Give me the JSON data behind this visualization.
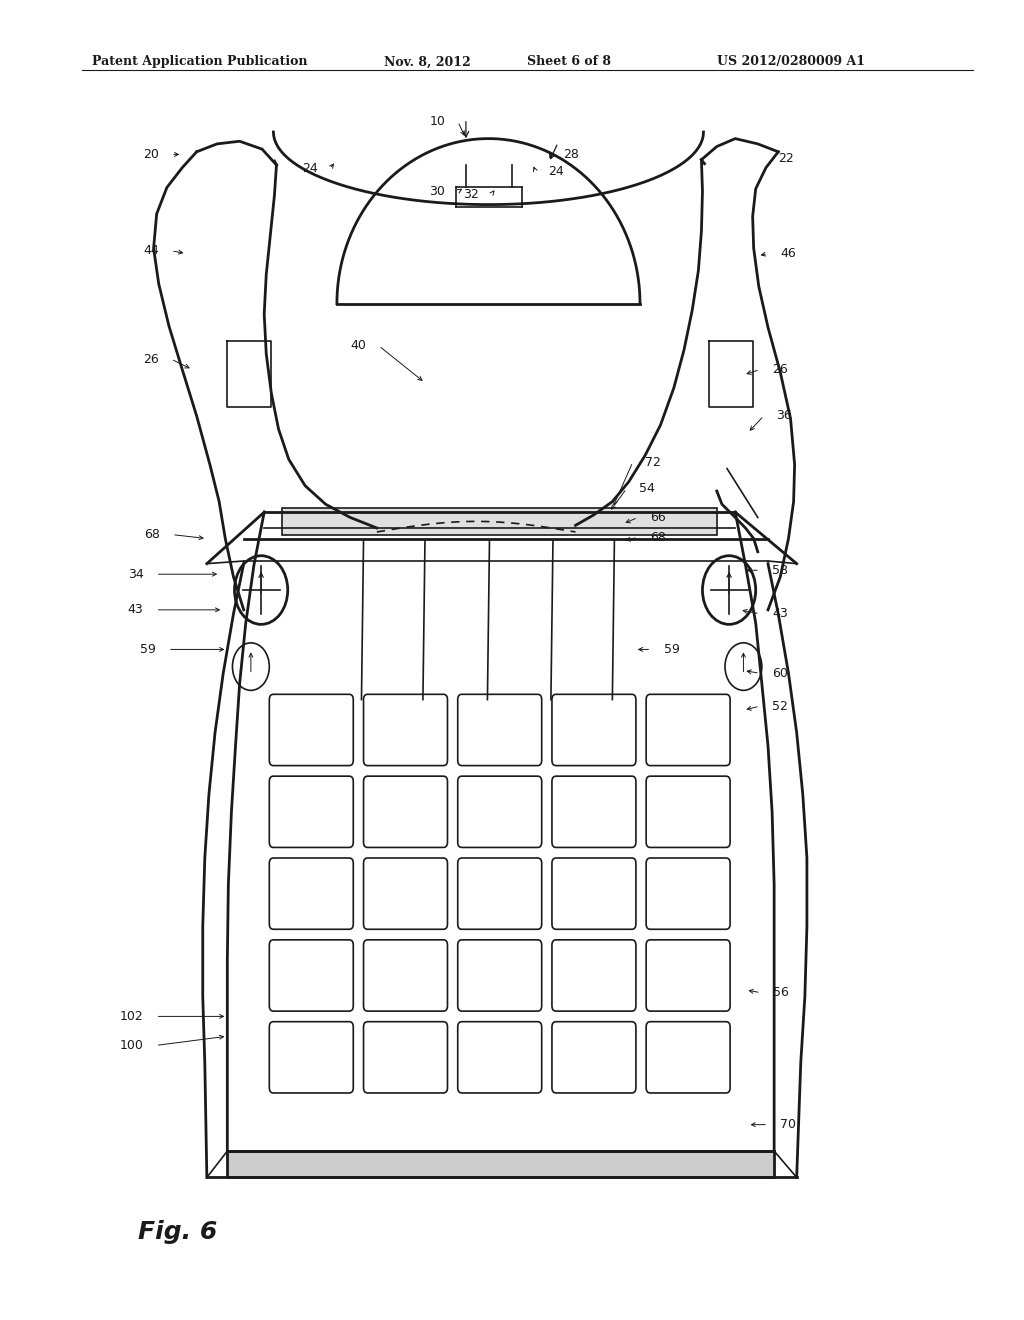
{
  "bg_color": "#ffffff",
  "line_color": "#1a1a1a",
  "header_text": "Patent Application Publication",
  "header_date": "Nov. 8, 2012",
  "header_sheet": "Sheet 6 of 8",
  "header_patent": "US 2012/0280009 A1",
  "fig_label": "Fig. 6",
  "lw_main": 2.0,
  "lw_thin": 1.2,
  "lw_dash": 1.2,
  "label_fs": 9
}
